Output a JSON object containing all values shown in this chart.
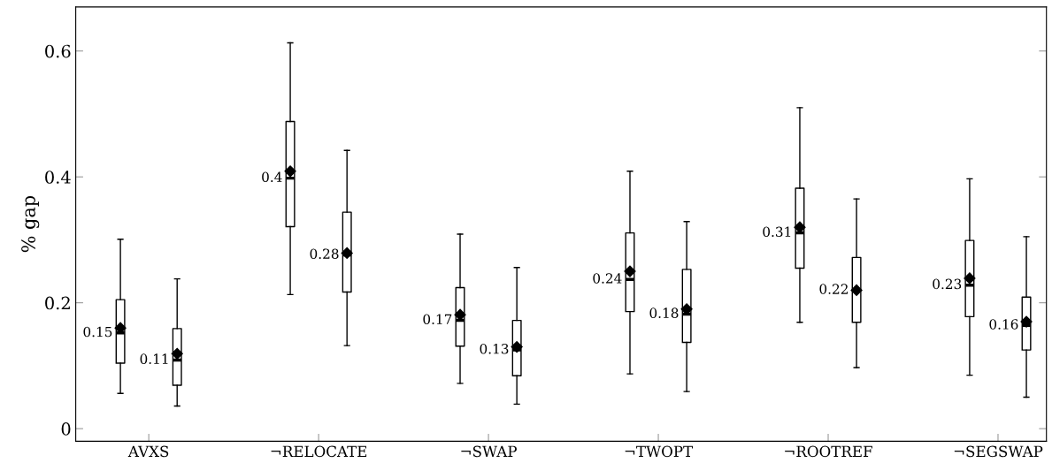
{
  "chart_data": {
    "type": "box",
    "ylabel": "% gap",
    "categories": [
      "AVXS",
      "¬RELOCATE",
      "¬SWAP",
      "¬TWOPT",
      "¬ROOTREF",
      "¬SEGSWAP"
    ],
    "ylim": [
      -0.02,
      0.67
    ],
    "yticks": [
      0,
      0.2,
      0.4,
      0.6
    ],
    "marker": "diamond",
    "series": [
      {
        "color": "#000000",
        "value_labels": [
          "0.15",
          "0.4",
          "0.17",
          "0.24",
          "0.31",
          "0.23"
        ],
        "boxes": [
          {
            "low": 0.056,
            "q1": 0.104,
            "median": 0.152,
            "q3": 0.205,
            "high": 0.301,
            "mean": 0.16
          },
          {
            "low": 0.213,
            "q1": 0.321,
            "median": 0.398,
            "q3": 0.488,
            "high": 0.613,
            "mean": 0.409
          },
          {
            "low": 0.072,
            "q1": 0.131,
            "median": 0.172,
            "q3": 0.224,
            "high": 0.309,
            "mean": 0.181
          },
          {
            "low": 0.087,
            "q1": 0.186,
            "median": 0.237,
            "q3": 0.311,
            "high": 0.409,
            "mean": 0.25
          },
          {
            "low": 0.169,
            "q1": 0.255,
            "median": 0.311,
            "q3": 0.382,
            "high": 0.51,
            "mean": 0.32
          },
          {
            "low": 0.085,
            "q1": 0.178,
            "median": 0.228,
            "q3": 0.299,
            "high": 0.397,
            "mean": 0.239
          }
        ]
      },
      {
        "color": "#000000",
        "value_labels": [
          "0.11",
          "0.28",
          "0.13",
          "0.18",
          "0.22",
          "0.16"
        ],
        "boxes": [
          {
            "low": 0.036,
            "q1": 0.069,
            "median": 0.109,
            "q3": 0.159,
            "high": 0.238,
            "mean": 0.119
          },
          {
            "low": 0.132,
            "q1": 0.217,
            "median": 0.276,
            "q3": 0.344,
            "high": 0.442,
            "mean": 0.279
          },
          {
            "low": 0.039,
            "q1": 0.084,
            "median": 0.125,
            "q3": 0.172,
            "high": 0.256,
            "mean": 0.13
          },
          {
            "low": 0.059,
            "q1": 0.137,
            "median": 0.182,
            "q3": 0.253,
            "high": 0.329,
            "mean": 0.19
          },
          {
            "low": 0.097,
            "q1": 0.169,
            "median": 0.22,
            "q3": 0.272,
            "high": 0.365,
            "mean": 0.22
          },
          {
            "low": 0.05,
            "q1": 0.125,
            "median": 0.164,
            "q3": 0.209,
            "high": 0.305,
            "mean": 0.17
          }
        ]
      }
    ]
  }
}
